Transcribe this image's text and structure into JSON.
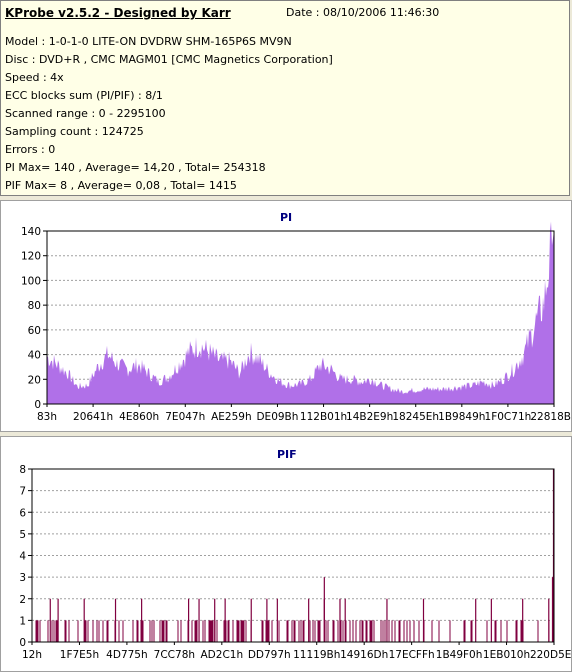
{
  "header": {
    "title": "KProbe v2.5.2 - Designed by Karr",
    "date": "Date : 08/10/2006 11:46:30",
    "lines": [
      "Model : 1-0-1-0 LITE-ON DVDRW SHM-165P6S MV9N",
      "Disc : DVD+R , CMC MAGM01 [CMC Magnetics Corporation]",
      "Speed : 4x",
      "ECC blocks sum (PI/PIF) : 8/1",
      "Scanned range : 0 - 2295100",
      "Sampling count : 124725",
      "Errors : 0",
      "PI Max= 140 , Average= 14,20 , Total= 254318",
      "PIF Max= 8 , Average= 0,08 , Total= 1415"
    ]
  },
  "chart_data": [
    {
      "type": "area",
      "title": "PI",
      "ylim": [
        0,
        140
      ],
      "yticks": [
        0,
        20,
        40,
        60,
        80,
        100,
        120,
        140
      ],
      "xticks": [
        "83h",
        "20641h",
        "4E860h",
        "7E047h",
        "AE259h",
        "DE09Bh",
        "112B01h",
        "14B2E9h",
        "18245Eh",
        "1B9849h",
        "1F0C71h",
        "22818Bh"
      ],
      "x": [
        0,
        0.02,
        0.04,
        0.06,
        0.08,
        0.1,
        0.12,
        0.14,
        0.16,
        0.18,
        0.2,
        0.22,
        0.24,
        0.26,
        0.28,
        0.3,
        0.32,
        0.34,
        0.36,
        0.38,
        0.4,
        0.42,
        0.44,
        0.46,
        0.48,
        0.5,
        0.52,
        0.54,
        0.56,
        0.58,
        0.6,
        0.62,
        0.64,
        0.66,
        0.68,
        0.7,
        0.72,
        0.74,
        0.76,
        0.78,
        0.8,
        0.82,
        0.84,
        0.86,
        0.88,
        0.9,
        0.92,
        0.94,
        0.96,
        0.98,
        1.0
      ],
      "values": [
        38,
        32,
        25,
        14,
        15,
        30,
        40,
        32,
        28,
        32,
        25,
        18,
        22,
        32,
        42,
        48,
        42,
        35,
        35,
        25,
        42,
        35,
        25,
        18,
        15,
        16,
        20,
        32,
        28,
        20,
        20,
        18,
        20,
        15,
        12,
        10,
        11,
        12,
        12,
        12,
        13,
        14,
        15,
        18,
        15,
        20,
        28,
        40,
        62,
        82,
        140
      ],
      "color": "#b070e8"
    },
    {
      "type": "bar",
      "title": "PIF",
      "ylim": [
        0,
        8
      ],
      "yticks": [
        0,
        1,
        2,
        3,
        4,
        5,
        6,
        7,
        8
      ],
      "xticks": [
        "12h",
        "1F7E5h",
        "4D775h",
        "7CC78h",
        "AD2C1h",
        "DD797h",
        "11119Bh",
        "14916Dh",
        "17ECFFh",
        "1B49F0h",
        "1EB010h",
        "220D5Eh"
      ],
      "values_2": [
        0.035,
        0.05,
        0.1,
        0.16,
        0.21,
        0.3,
        0.32,
        0.35,
        0.37,
        0.42,
        0.45,
        0.47,
        0.53,
        0.56,
        0.59,
        0.6,
        0.68,
        0.75,
        0.85,
        0.88,
        0.94,
        0.99
      ],
      "values_3": [
        0.56
      ],
      "values_8": [
        1.0
      ],
      "color": "#800040"
    }
  ]
}
